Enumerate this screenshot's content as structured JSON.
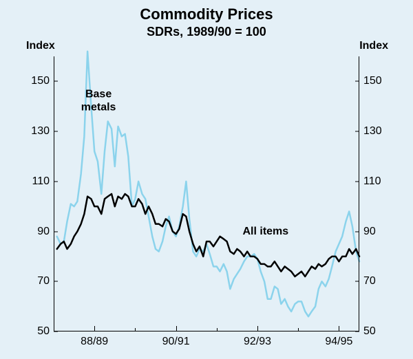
{
  "chart": {
    "type": "line",
    "title": "Commodity Prices",
    "subtitle": "SDRs, 1989/90 = 100",
    "y_axis_title_left": "Index",
    "y_axis_title_right": "Index",
    "ylim": [
      50,
      160
    ],
    "yticks": [
      50,
      70,
      90,
      110,
      130,
      150
    ],
    "xlim": [
      1987.5,
      1995.0
    ],
    "xticks_major": [
      1988.5,
      1990.5,
      1992.5,
      1994.5
    ],
    "xtick_labels": [
      "88/89",
      "90/91",
      "92/93",
      "94/95"
    ],
    "xticks_minor": [
      1987.5,
      1989.5,
      1991.5,
      1993.5
    ],
    "background_color": "#e4f0f7",
    "axis_color": "#000000",
    "series": {
      "base_metals": {
        "label": "Base\nmetals",
        "label_pos_x": 1988.6,
        "label_pos_y": 142,
        "label_color": "#000000",
        "color": "#8bd3ec",
        "line_width": 2.5,
        "data": [
          [
            1987.58,
            88
          ],
          [
            1987.67,
            85
          ],
          [
            1987.75,
            86
          ],
          [
            1987.83,
            94
          ],
          [
            1987.92,
            101
          ],
          [
            1988.0,
            100
          ],
          [
            1988.08,
            102
          ],
          [
            1988.17,
            113
          ],
          [
            1988.25,
            128
          ],
          [
            1988.33,
            162
          ],
          [
            1988.42,
            140
          ],
          [
            1988.5,
            122
          ],
          [
            1988.58,
            118
          ],
          [
            1988.67,
            105
          ],
          [
            1988.75,
            122
          ],
          [
            1988.83,
            134
          ],
          [
            1988.92,
            131
          ],
          [
            1989.0,
            116
          ],
          [
            1989.08,
            132
          ],
          [
            1989.17,
            128
          ],
          [
            1989.25,
            129
          ],
          [
            1989.33,
            120
          ],
          [
            1989.42,
            100
          ],
          [
            1989.5,
            103
          ],
          [
            1989.58,
            110
          ],
          [
            1989.67,
            105
          ],
          [
            1989.75,
            103
          ],
          [
            1989.83,
            96
          ],
          [
            1989.92,
            88
          ],
          [
            1990.0,
            83
          ],
          [
            1990.08,
            82
          ],
          [
            1990.17,
            86
          ],
          [
            1990.25,
            92
          ],
          [
            1990.33,
            96
          ],
          [
            1990.42,
            90
          ],
          [
            1990.5,
            88
          ],
          [
            1990.58,
            92
          ],
          [
            1990.67,
            100
          ],
          [
            1990.75,
            110
          ],
          [
            1990.83,
            95
          ],
          [
            1990.92,
            82
          ],
          [
            1991.0,
            80
          ],
          [
            1991.08,
            83
          ],
          [
            1991.17,
            82
          ],
          [
            1991.25,
            85
          ],
          [
            1991.33,
            81
          ],
          [
            1991.42,
            76
          ],
          [
            1991.5,
            76
          ],
          [
            1991.58,
            74
          ],
          [
            1991.67,
            77
          ],
          [
            1991.75,
            74
          ],
          [
            1991.83,
            67
          ],
          [
            1991.92,
            71
          ],
          [
            1992.0,
            73
          ],
          [
            1992.08,
            75
          ],
          [
            1992.17,
            78
          ],
          [
            1992.25,
            80
          ],
          [
            1992.33,
            80
          ],
          [
            1992.42,
            81
          ],
          [
            1992.5,
            79
          ],
          [
            1992.58,
            74
          ],
          [
            1992.67,
            70
          ],
          [
            1992.75,
            63
          ],
          [
            1992.83,
            63
          ],
          [
            1992.92,
            68
          ],
          [
            1993.0,
            67
          ],
          [
            1993.08,
            61
          ],
          [
            1993.17,
            63
          ],
          [
            1993.25,
            60
          ],
          [
            1993.33,
            58
          ],
          [
            1993.42,
            61
          ],
          [
            1993.5,
            62
          ],
          [
            1993.58,
            62
          ],
          [
            1993.67,
            58
          ],
          [
            1993.75,
            56
          ],
          [
            1993.83,
            58
          ],
          [
            1993.92,
            60
          ],
          [
            1994.0,
            67
          ],
          [
            1994.08,
            70
          ],
          [
            1994.17,
            68
          ],
          [
            1994.25,
            71
          ],
          [
            1994.33,
            76
          ],
          [
            1994.42,
            82
          ],
          [
            1994.5,
            85
          ],
          [
            1994.58,
            88
          ],
          [
            1994.67,
            94
          ],
          [
            1994.75,
            98
          ],
          [
            1994.83,
            92
          ],
          [
            1994.92,
            82
          ],
          [
            1995.0,
            78
          ]
        ]
      },
      "all_items": {
        "label": "All items",
        "label_pos_x": 1992.7,
        "label_pos_y": 90,
        "label_color": "#000000",
        "color": "#000000",
        "line_width": 2.5,
        "data": [
          [
            1987.58,
            83
          ],
          [
            1987.67,
            85
          ],
          [
            1987.75,
            86
          ],
          [
            1987.83,
            83
          ],
          [
            1987.92,
            85
          ],
          [
            1988.0,
            88
          ],
          [
            1988.08,
            90
          ],
          [
            1988.17,
            93
          ],
          [
            1988.25,
            97
          ],
          [
            1988.33,
            104
          ],
          [
            1988.42,
            103
          ],
          [
            1988.5,
            100
          ],
          [
            1988.58,
            100
          ],
          [
            1988.67,
            97
          ],
          [
            1988.75,
            103
          ],
          [
            1988.83,
            104
          ],
          [
            1988.92,
            105
          ],
          [
            1989.0,
            100
          ],
          [
            1989.08,
            104
          ],
          [
            1989.17,
            103
          ],
          [
            1989.25,
            105
          ],
          [
            1989.33,
            104
          ],
          [
            1989.42,
            100
          ],
          [
            1989.5,
            100
          ],
          [
            1989.58,
            103
          ],
          [
            1989.67,
            101
          ],
          [
            1989.75,
            97
          ],
          [
            1989.83,
            100
          ],
          [
            1989.92,
            97
          ],
          [
            1990.0,
            93
          ],
          [
            1990.08,
            93
          ],
          [
            1990.17,
            92
          ],
          [
            1990.25,
            95
          ],
          [
            1990.33,
            94
          ],
          [
            1990.42,
            90
          ],
          [
            1990.5,
            89
          ],
          [
            1990.58,
            91
          ],
          [
            1990.67,
            97
          ],
          [
            1990.75,
            96
          ],
          [
            1990.83,
            90
          ],
          [
            1990.92,
            85
          ],
          [
            1991.0,
            82
          ],
          [
            1991.08,
            84
          ],
          [
            1991.17,
            80
          ],
          [
            1991.25,
            86
          ],
          [
            1991.33,
            86
          ],
          [
            1991.42,
            84
          ],
          [
            1991.5,
            86
          ],
          [
            1991.58,
            88
          ],
          [
            1991.67,
            87
          ],
          [
            1991.75,
            86
          ],
          [
            1991.83,
            82
          ],
          [
            1991.92,
            81
          ],
          [
            1992.0,
            83
          ],
          [
            1992.08,
            82
          ],
          [
            1992.17,
            80
          ],
          [
            1992.25,
            82
          ],
          [
            1992.33,
            80
          ],
          [
            1992.42,
            80
          ],
          [
            1992.5,
            79
          ],
          [
            1992.58,
            77
          ],
          [
            1992.67,
            77
          ],
          [
            1992.75,
            76
          ],
          [
            1992.83,
            76
          ],
          [
            1992.92,
            78
          ],
          [
            1993.0,
            76
          ],
          [
            1993.08,
            74
          ],
          [
            1993.17,
            76
          ],
          [
            1993.25,
            75
          ],
          [
            1993.33,
            74
          ],
          [
            1993.42,
            72
          ],
          [
            1993.5,
            73
          ],
          [
            1993.58,
            74
          ],
          [
            1993.67,
            72
          ],
          [
            1993.75,
            74
          ],
          [
            1993.83,
            76
          ],
          [
            1993.92,
            75
          ],
          [
            1994.0,
            77
          ],
          [
            1994.08,
            76
          ],
          [
            1994.17,
            77
          ],
          [
            1994.25,
            79
          ],
          [
            1994.33,
            80
          ],
          [
            1994.42,
            80
          ],
          [
            1994.5,
            78
          ],
          [
            1994.58,
            80
          ],
          [
            1994.67,
            80
          ],
          [
            1994.75,
            83
          ],
          [
            1994.83,
            81
          ],
          [
            1994.92,
            83
          ],
          [
            1995.0,
            80
          ]
        ]
      }
    }
  }
}
